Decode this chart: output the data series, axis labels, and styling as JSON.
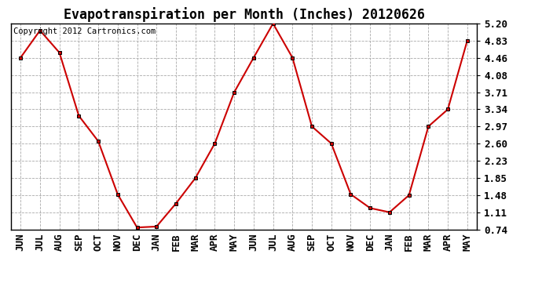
{
  "title": "Evapotranspiration per Month (Inches) 20120626",
  "copyright_text": "Copyright 2012 Cartronics.com",
  "x_labels": [
    "JUN",
    "JUL",
    "AUG",
    "SEP",
    "OCT",
    "NOV",
    "DEC",
    "JAN",
    "FEB",
    "MAR",
    "APR",
    "MAY",
    "JUN",
    "JUL",
    "AUG",
    "SEP",
    "OCT",
    "NOV",
    "DEC",
    "JAN",
    "FEB",
    "MAR",
    "APR",
    "MAY"
  ],
  "y_values": [
    4.46,
    5.05,
    4.57,
    3.2,
    2.65,
    1.5,
    0.78,
    0.8,
    1.3,
    1.85,
    2.6,
    3.71,
    4.46,
    5.2,
    4.46,
    2.97,
    2.6,
    1.5,
    1.2,
    1.11,
    1.48,
    2.97,
    3.34,
    4.83
  ],
  "line_color": "#cc0000",
  "marker_color": "#000000",
  "y_ticks": [
    0.74,
    1.11,
    1.48,
    1.85,
    2.23,
    2.6,
    2.97,
    3.34,
    3.71,
    4.08,
    4.46,
    4.83,
    5.2
  ],
  "ylim": [
    0.74,
    5.2
  ],
  "background_color": "#ffffff",
  "grid_color": "#aaaaaa",
  "title_fontsize": 12,
  "copyright_fontsize": 7.5,
  "tick_fontsize": 9,
  "figwidth": 6.9,
  "figheight": 3.75,
  "dpi": 100
}
